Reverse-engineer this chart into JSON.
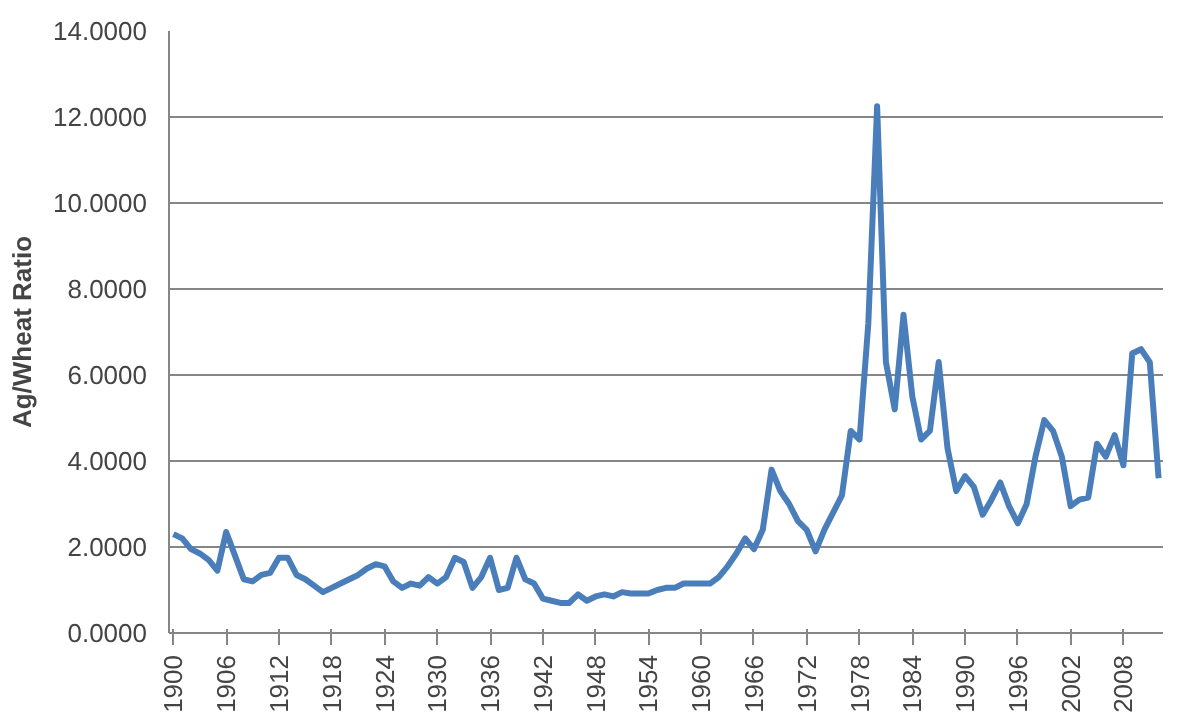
{
  "chart_data": {
    "type": "line",
    "ylabel": "Ag/Wheat Ratio",
    "categories": [
      "1900",
      null,
      null,
      null,
      null,
      null,
      "1906",
      null,
      null,
      null,
      null,
      null,
      "1912",
      null,
      null,
      null,
      null,
      null,
      "1918",
      null,
      null,
      null,
      null,
      null,
      "1924",
      null,
      null,
      null,
      null,
      null,
      "1930",
      null,
      null,
      null,
      null,
      null,
      "1936",
      null,
      null,
      null,
      null,
      null,
      "1942",
      null,
      null,
      null,
      null,
      null,
      "1948",
      null,
      null,
      null,
      null,
      null,
      "1954",
      null,
      null,
      null,
      null,
      null,
      "1960",
      null,
      null,
      null,
      null,
      null,
      "1966",
      null,
      null,
      null,
      null,
      null,
      "1972",
      null,
      null,
      null,
      null,
      null,
      "1978",
      null,
      null,
      null,
      null,
      null,
      "1984",
      null,
      null,
      null,
      null,
      null,
      "1990",
      null,
      null,
      null,
      null,
      null,
      "1996",
      null,
      null,
      null,
      null,
      null,
      "2002",
      null,
      null,
      null,
      null,
      null,
      "2008",
      null,
      null,
      null,
      null
    ],
    "series": [
      {
        "color": "#4a7ebb",
        "values": [
          2.3,
          2.2,
          1.95,
          1.85,
          1.7,
          1.45,
          2.35,
          1.8,
          1.25,
          1.2,
          1.35,
          1.4,
          1.75,
          1.75,
          1.35,
          1.25,
          1.1,
          0.95,
          1.05,
          1.15,
          1.25,
          1.35,
          1.5,
          1.6,
          1.55,
          1.2,
          1.05,
          1.15,
          1.1,
          1.3,
          1.15,
          1.3,
          1.75,
          1.65,
          1.05,
          1.3,
          1.75,
          1.0,
          1.05,
          1.75,
          1.25,
          1.15,
          0.8,
          0.75,
          0.7,
          0.7,
          0.9,
          0.75,
          0.85,
          0.9,
          0.85,
          0.95,
          0.92,
          0.92,
          0.92,
          1.0,
          1.05,
          1.05,
          1.15,
          1.15,
          1.15,
          1.15,
          1.3,
          1.55,
          1.85,
          2.2,
          1.95,
          2.4,
          3.8,
          3.3,
          3.0,
          2.6,
          2.4,
          1.9,
          2.4,
          2.8,
          3.2,
          4.7,
          4.5,
          7.2,
          12.25,
          6.3,
          5.2,
          7.4,
          5.5,
          4.5,
          4.7,
          6.3,
          4.3,
          3.3,
          3.65,
          3.4,
          2.75,
          3.1,
          3.5,
          2.95,
          2.55,
          3.0,
          4.1,
          4.95,
          4.7,
          4.1,
          2.95,
          3.1,
          3.15,
          4.4,
          4.1,
          4.6,
          3.9,
          6.5,
          6.6,
          6.3,
          3.6
        ]
      }
    ],
    "ylim": [
      0,
      14
    ],
    "yticks": [
      {
        "value": 0,
        "label": "0.0000"
      },
      {
        "value": 2,
        "label": "2.0000"
      },
      {
        "value": 4,
        "label": "4.0000"
      },
      {
        "value": 6,
        "label": "6.0000"
      },
      {
        "value": 8,
        "label": "8.0000"
      },
      {
        "value": 10,
        "label": "10.0000"
      },
      {
        "value": 12,
        "label": "12.0000"
      },
      {
        "value": 14,
        "label": "14.0000"
      }
    ],
    "grid": "y",
    "marker": "none",
    "line_style": "solid"
  }
}
